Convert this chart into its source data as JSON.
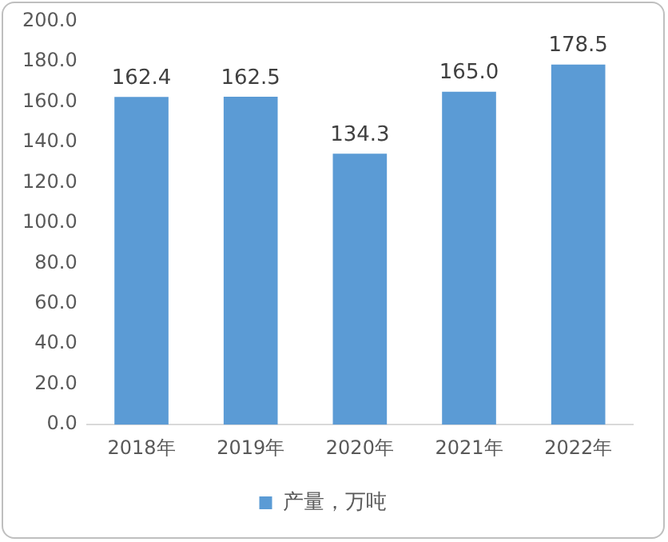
{
  "chart_data": {
    "type": "bar",
    "categories": [
      "2018年",
      "2019年",
      "2020年",
      "2021年",
      "2022年"
    ],
    "series": [
      {
        "name": "产量，万吨",
        "color": "#5b9bd5",
        "values": [
          162.4,
          162.5,
          134.3,
          165.0,
          178.5
        ]
      }
    ],
    "ylim": [
      0,
      200
    ],
    "yticks": [
      {
        "value": 0,
        "label": "0.0"
      },
      {
        "value": 20,
        "label": "20.0"
      },
      {
        "value": 40,
        "label": "40.0"
      },
      {
        "value": 60,
        "label": "60.0"
      },
      {
        "value": 80,
        "label": "80.0"
      },
      {
        "value": 100,
        "label": "100.0"
      },
      {
        "value": 120,
        "label": "120.0"
      },
      {
        "value": 140,
        "label": "140.0"
      },
      {
        "value": 160,
        "label": "160.0"
      },
      {
        "value": 180,
        "label": "180.0"
      },
      {
        "value": 200,
        "label": "200.0"
      }
    ],
    "value_labels": [
      "162.4",
      "162.5",
      "134.3",
      "165.0",
      "178.5"
    ],
    "grid": false,
    "legend": "bottom"
  }
}
